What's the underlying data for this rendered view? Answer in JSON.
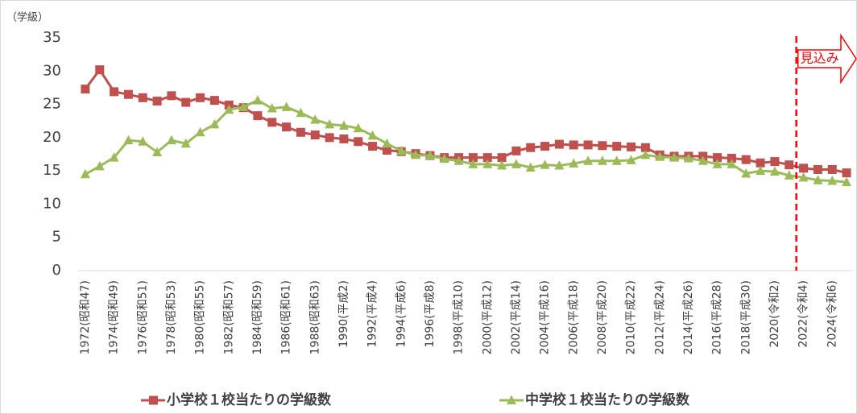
{
  "chart_data": {
    "type": "line",
    "y_unit_label": "（学級）",
    "categories": [
      "1972(昭和47)",
      null,
      "1974(昭和49)",
      null,
      "1976(昭和51)",
      null,
      "1978(昭和53)",
      null,
      "1980(昭和55)",
      null,
      "1982(昭和57)",
      null,
      "1984(昭和59)",
      null,
      "1986(昭和61)",
      null,
      "1988(昭和63)",
      null,
      "1990(平成2)",
      null,
      "1992(平成4)",
      null,
      "1994(平成6)",
      null,
      "1996(平成8)",
      null,
      "1998(平成10)",
      null,
      "2000(平成12)",
      null,
      "2002(平成14)",
      null,
      "2004(平成16)",
      null,
      "2006(平成18)",
      null,
      "2008(平成20)",
      null,
      "2010(平成22)",
      null,
      "2012(平成24)",
      null,
      "2014(平成26)",
      null,
      "2016(平成28)",
      null,
      "2018(平成30)",
      null,
      "2020(令和2)",
      null,
      "2022(令和4)",
      null,
      "2024(令和6)",
      null
    ],
    "series": [
      {
        "name": "小学校１校当たりの学級数",
        "color": "#c0504d",
        "marker": "square",
        "values": [
          27.3,
          30.2,
          26.9,
          26.5,
          26.0,
          25.5,
          26.3,
          25.3,
          26.0,
          25.6,
          24.9,
          24.5,
          23.3,
          22.3,
          21.6,
          20.8,
          20.4,
          20.0,
          19.8,
          19.4,
          18.7,
          18.1,
          17.9,
          17.6,
          17.3,
          17.0,
          17.0,
          17.0,
          17.0,
          17.0,
          18.0,
          18.5,
          18.7,
          19.0,
          18.9,
          18.9,
          18.8,
          18.7,
          18.6,
          18.5,
          17.4,
          17.2,
          17.2,
          17.2,
          17.0,
          16.9,
          16.7,
          16.2,
          16.4,
          15.9,
          15.4,
          15.2,
          15.2,
          14.7
        ]
      },
      {
        "name": "中学校１校当たりの学級数",
        "color": "#9bbb59",
        "marker": "triangle",
        "values": [
          14.5,
          15.7,
          17.0,
          19.6,
          19.4,
          17.8,
          19.6,
          19.1,
          20.8,
          22.0,
          24.2,
          24.6,
          25.6,
          24.4,
          24.6,
          23.7,
          22.7,
          22.0,
          21.8,
          21.4,
          20.3,
          19.1,
          18.0,
          17.4,
          17.3,
          16.8,
          16.5,
          16.0,
          16.0,
          15.8,
          16.0,
          15.5,
          15.9,
          15.8,
          16.1,
          16.5,
          16.5,
          16.5,
          16.6,
          17.4,
          17.1,
          17.0,
          16.9,
          16.5,
          16.0,
          16.0,
          14.6,
          15.0,
          14.9,
          14.3,
          14.0,
          13.6,
          13.5,
          13.3
        ]
      }
    ],
    "ylim": [
      0,
      35
    ],
    "yticks": [
      0,
      5,
      10,
      15,
      20,
      25,
      30,
      35
    ],
    "grid": false,
    "forecast": {
      "label": "見込み",
      "start_index": 50,
      "color": "#ff0000"
    },
    "legend": "bottom"
  }
}
